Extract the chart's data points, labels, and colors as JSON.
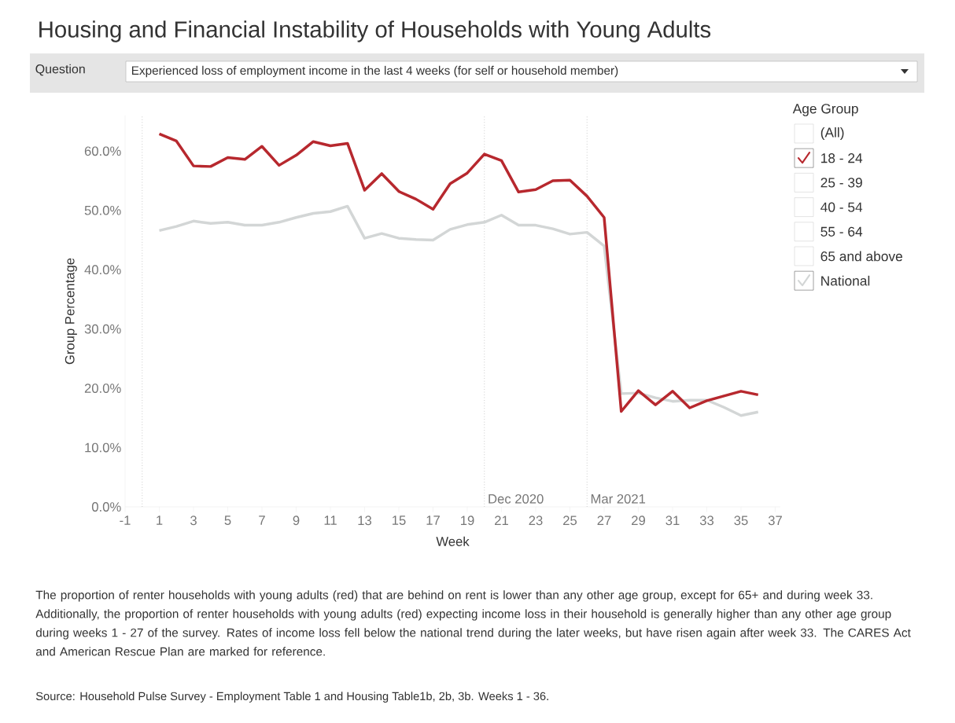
{
  "chart_data": {
    "type": "line",
    "title": "Housing and Financial Instability of Households with Young Adults",
    "subtitle": "Experienced loss of employment income in the last 4 weeks (for self or household member)",
    "xlabel": "Week",
    "ylabel": "Group Percentage",
    "legend_title": "Age Group",
    "legend": "right",
    "x": [
      1,
      2,
      3,
      4,
      5,
      6,
      7,
      8,
      9,
      10,
      11,
      12,
      13,
      14,
      15,
      16,
      17,
      18,
      19,
      20,
      21,
      22,
      23,
      24,
      25,
      26,
      27,
      28,
      29,
      30,
      31,
      32,
      33,
      34,
      35,
      36
    ],
    "series": [
      {
        "name": "National",
        "color": "#d3d6d6",
        "values": [
          46.6,
          47.3,
          48.2,
          47.8,
          48.0,
          47.5,
          47.5,
          48.0,
          48.8,
          49.5,
          49.8,
          50.7,
          45.3,
          46.1,
          45.3,
          45.1,
          45.0,
          46.8,
          47.6,
          48.0,
          49.2,
          47.5,
          47.5,
          46.9,
          46.0,
          46.3,
          44.0,
          19.1,
          19.2,
          18.4,
          17.8,
          18.0,
          18.0,
          16.8,
          15.4,
          16.0
        ]
      },
      {
        "name": "18 - 24",
        "color": "#b7282e",
        "values": [
          62.9,
          61.7,
          57.5,
          57.4,
          58.9,
          58.6,
          60.8,
          57.6,
          59.3,
          61.6,
          60.9,
          61.3,
          53.4,
          56.2,
          53.2,
          51.9,
          50.2,
          54.5,
          56.3,
          59.5,
          58.4,
          53.1,
          53.5,
          55.0,
          55.1,
          52.4,
          48.8,
          16.1,
          19.6,
          17.2,
          19.5,
          16.7,
          17.9,
          18.7,
          19.5,
          18.9
        ]
      }
    ],
    "xlim": [
      -1,
      37.3
    ],
    "ylim": [
      0,
      66
    ],
    "xticks": [
      -1,
      1,
      3,
      5,
      7,
      9,
      11,
      13,
      15,
      17,
      19,
      21,
      23,
      25,
      27,
      29,
      31,
      33,
      35,
      37
    ],
    "yticks": [
      {
        "value": 0,
        "label": "0.0%"
      },
      {
        "value": 10,
        "label": "10.0%"
      },
      {
        "value": 20,
        "label": "20.0%"
      },
      {
        "value": 30,
        "label": "30.0%"
      },
      {
        "value": 40,
        "label": "40.0%"
      },
      {
        "value": 50,
        "label": "50.0%"
      },
      {
        "value": 60,
        "label": "60.0%"
      }
    ],
    "ref_lines": [
      {
        "axis": "x",
        "value": 0,
        "color": "#b0b0b0",
        "line_style": "dotted"
      },
      {
        "axis": "x",
        "value": 20,
        "label": "Dec 2020",
        "color": "#b0b0b0",
        "line_style": "dotted"
      },
      {
        "axis": "x",
        "value": 26,
        "label": "Mar 2021",
        "color": "#b0b0b0",
        "line_style": "dotted"
      }
    ],
    "marker": "none",
    "line_style": "solid",
    "grid": false,
    "annotations": [
      "Question",
      "The proportion of renter households with young adults (red) that are behind on rent is lower than any other age group, except for 65+ and during week 33.  Additionally, the proportion of renter households with young adults (red) expecting income loss in their household is generally higher than any other age group during weeks 1 - 27 of the survey.  Rates of income loss fell below the national trend during the later weeks, but have risen again after week 33. The CARES Act and American Rescue Plan are marked for reference.",
      "Source: Household Pulse Survey - Employment Table 1 and Housing Table1b, 2b, 3b. Weeks 1 - 36.",
      "(All)",
      "25 - 39",
      "40 - 54",
      "55 - 64",
      "65 and above"
    ]
  }
}
